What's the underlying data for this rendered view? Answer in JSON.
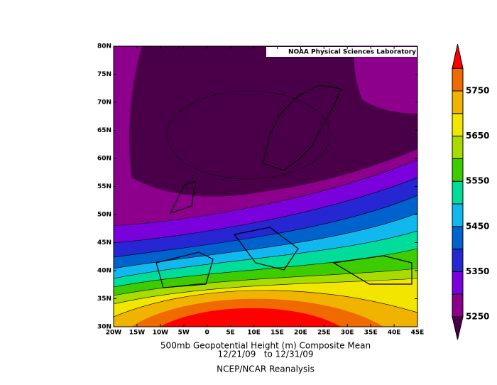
{
  "map": {
    "title": "500mb Geopotential Height (m) Composite Mean",
    "date_range": "12/21/09   to 12/31/09",
    "source": "NCEP/NCAR Reanalysis",
    "credit": "NOAA Physical Sciences Laboratory",
    "x_ticks": [
      "20W",
      "15W",
      "10W",
      "5W",
      "0",
      "5E",
      "10E",
      "15E",
      "20E",
      "25E",
      "30E",
      "35E",
      "40E",
      "45E"
    ],
    "y_ticks": [
      "80N",
      "75N",
      "70N",
      "65N",
      "60N",
      "55N",
      "50N",
      "45N",
      "40N",
      "35N",
      "30N"
    ]
  },
  "colorbar": {
    "labels": [
      5250,
      5350,
      5450,
      5550,
      5650,
      5750
    ],
    "colors": [
      "#4a0048",
      "#8c008c",
      "#7a00dc",
      "#2626d2",
      "#0062cc",
      "#10b8ee",
      "#00dc9a",
      "#3ccc00",
      "#a8dc00",
      "#f2e600",
      "#f0b400",
      "#f06a00",
      "#ff0000"
    ]
  }
}
